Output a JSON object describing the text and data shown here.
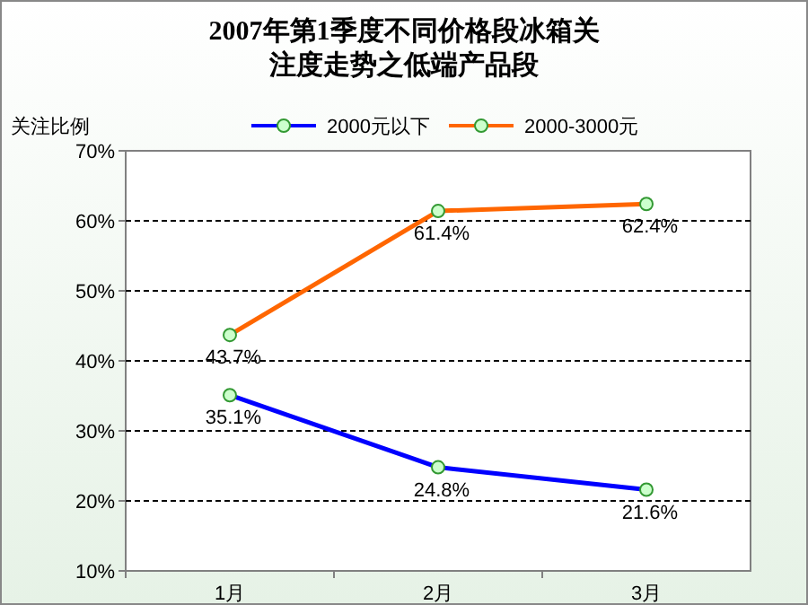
{
  "chart_data": {
    "type": "line",
    "title": "2007年第1季度不同价格段冰箱关注度走势之低端产品段",
    "ylabel": "关注比例",
    "categories": [
      "1月",
      "2月",
      "3月"
    ],
    "series": [
      {
        "name": "2000元以下",
        "color": "#0000ff",
        "values": [
          35.1,
          24.8,
          21.6
        ],
        "value_labels": [
          "35.1%",
          "24.8%",
          "21.6%"
        ]
      },
      {
        "name": "2000-3000元",
        "color": "#ff6600",
        "values": [
          43.7,
          61.4,
          62.4
        ],
        "value_labels": [
          "43.7%",
          "61.4%",
          "62.4%"
        ]
      }
    ],
    "ylim": [
      10,
      70
    ],
    "yticks": [
      {
        "value": 10,
        "label": "10%"
      },
      {
        "value": 20,
        "label": "20%"
      },
      {
        "value": 30,
        "label": "30%"
      },
      {
        "value": 40,
        "label": "40%"
      },
      {
        "value": 50,
        "label": "50%"
      },
      {
        "value": 60,
        "label": "60%"
      },
      {
        "value": 70,
        "label": "70%"
      }
    ],
    "grid": "y",
    "legend": "top",
    "marker": "circle",
    "line_style": "solid"
  }
}
